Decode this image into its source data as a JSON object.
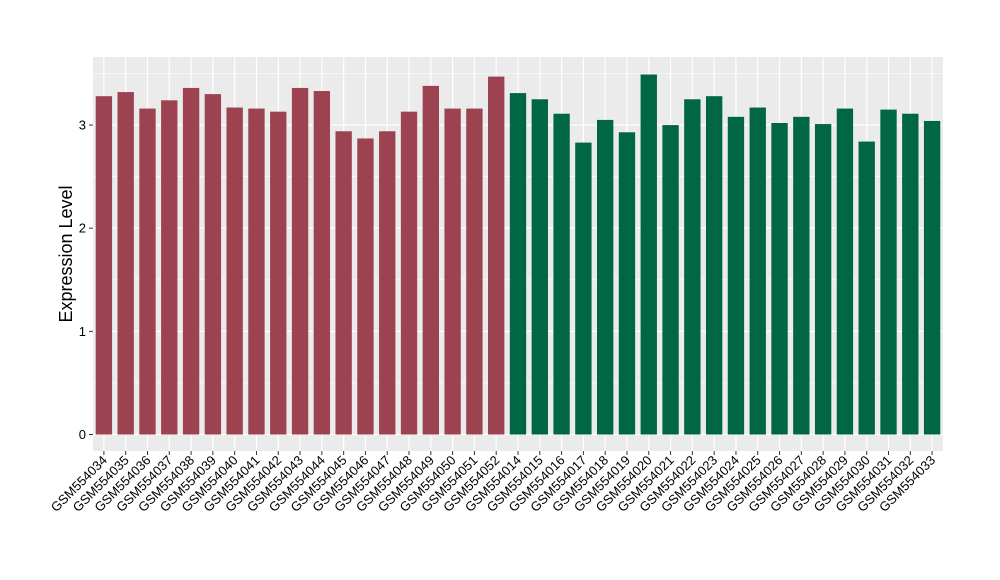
{
  "chart_data": {
    "type": "bar",
    "title": "",
    "xlabel": "",
    "ylabel": "Expression Level",
    "ylim": [
      -0.16,
      3.66
    ],
    "yticks": [
      0,
      1,
      2,
      3
    ],
    "grid": true,
    "legend": "none",
    "colors": {
      "group1": "#9c4250",
      "group2": "#006644",
      "panel": "#ebebeb",
      "grid": "#ffffff",
      "ticks": "#333333"
    },
    "categories": [
      "GSM554034",
      "GSM554035",
      "GSM554036",
      "GSM554037",
      "GSM554038",
      "GSM554039",
      "GSM554040",
      "GSM554041",
      "GSM554042",
      "GSM554043",
      "GSM554044",
      "GSM554045",
      "GSM554046",
      "GSM554047",
      "GSM554048",
      "GSM554049",
      "GSM554050",
      "GSM554051",
      "GSM554052",
      "GSM554014",
      "GSM554015",
      "GSM554016",
      "GSM554017",
      "GSM554018",
      "GSM554019",
      "GSM554020",
      "GSM554021",
      "GSM554022",
      "GSM554023",
      "GSM554024",
      "GSM554025",
      "GSM554026",
      "GSM554027",
      "GSM554028",
      "GSM554029",
      "GSM554030",
      "GSM554031",
      "GSM554032",
      "GSM554033"
    ],
    "values": [
      3.28,
      3.32,
      3.16,
      3.24,
      3.36,
      3.3,
      3.17,
      3.16,
      3.13,
      3.36,
      3.33,
      2.94,
      2.87,
      2.94,
      3.13,
      3.38,
      3.16,
      3.16,
      3.47,
      3.31,
      3.25,
      3.11,
      2.83,
      3.05,
      2.93,
      3.49,
      3.0,
      3.25,
      3.28,
      3.08,
      3.17,
      3.02,
      3.08,
      3.01,
      3.16,
      2.84,
      3.15,
      3.11,
      3.04
    ],
    "groups": [
      1,
      1,
      1,
      1,
      1,
      1,
      1,
      1,
      1,
      1,
      1,
      1,
      1,
      1,
      1,
      1,
      1,
      1,
      1,
      2,
      2,
      2,
      2,
      2,
      2,
      2,
      2,
      2,
      2,
      2,
      2,
      2,
      2,
      2,
      2,
      2,
      2,
      2,
      2
    ]
  }
}
